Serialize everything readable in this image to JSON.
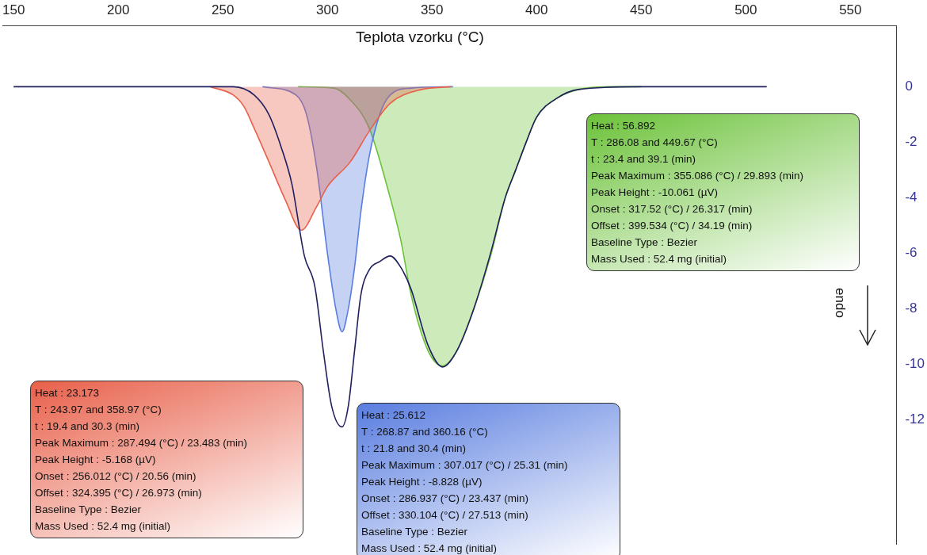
{
  "chart_data": {
    "type": "line",
    "xlabel": "Teplota vzorku (°C)",
    "xlim": [
      145,
      572
    ],
    "xticks": [
      150,
      200,
      250,
      300,
      350,
      400,
      450,
      500,
      550
    ],
    "ylim": [
      -16.5,
      2.2
    ],
    "yticks": [
      0,
      -2,
      -4,
      -6,
      -8,
      -10,
      -12
    ],
    "grid": false,
    "legend": false,
    "marker": "none",
    "line_style": "solid",
    "series": [
      {
        "color": "#202060",
        "x": [
          150,
          240,
          255,
          265,
          272,
          278,
          283,
          289,
          294,
          298,
          302,
          307,
          310,
          313,
          316,
          320,
          325,
          330,
          335,
          340,
          348,
          355,
          362,
          370,
          378,
          385,
          390,
          395,
          400,
          410,
          420,
          450,
          510
        ],
        "values": [
          0,
          0,
          0,
          -0.3,
          -1.0,
          -2.2,
          -3.5,
          -6.1,
          -7.2,
          -9.5,
          -11.5,
          -12.26,
          -11.5,
          -9.5,
          -7.5,
          -6.6,
          -6.3,
          -6.1,
          -6.5,
          -7.3,
          -9.3,
          -10.1,
          -9.5,
          -8.0,
          -6.0,
          -4.0,
          -3.0,
          -2.0,
          -1.1,
          -0.4,
          -0.1,
          0,
          0
        ]
      },
      {
        "type": "area",
        "color": "#e8604a",
        "x": [
          244,
          255,
          260,
          265,
          272,
          280,
          287.5,
          295,
          300,
          311,
          320,
          330,
          345,
          359
        ],
        "values": [
          0,
          -0.3,
          -0.7,
          -1.5,
          -2.7,
          -4.1,
          -5.17,
          -4.3,
          -3.6,
          -2.7,
          -1.6,
          -0.6,
          -0.1,
          0
        ]
      },
      {
        "type": "area",
        "color": "#5a7ee0",
        "x": [
          269,
          285,
          290,
          295,
          300,
          304,
          307,
          310,
          313,
          316,
          320,
          325,
          330,
          340,
          360
        ],
        "values": [
          0,
          -0.3,
          -1,
          -3,
          -6,
          -8,
          -8.83,
          -8,
          -6.5,
          -4.5,
          -2.5,
          -1,
          -0.3,
          -0.05,
          0
        ]
      },
      {
        "type": "area",
        "color": "#6cc23a",
        "x": [
          286,
          303,
          310,
          320,
          330,
          335,
          340,
          348,
          355,
          362,
          370,
          378,
          385,
          390,
          395,
          400,
          410,
          420,
          435,
          450
        ],
        "values": [
          0,
          -0.05,
          -0.4,
          -1.5,
          -4,
          -5.5,
          -7.5,
          -9.5,
          -10.06,
          -9.5,
          -8,
          -6.1,
          -4,
          -3,
          -2,
          -1.1,
          -0.4,
          -0.1,
          0,
          0
        ]
      }
    ],
    "annotations": [
      "Heat :  23.173\nT : 243.97 and 358.97 (°C)\nt : 19.4 and 30.3 (min)\nPeak Maximum :  287.494 (°C) / 23.483 (min)\nPeak Height :  -5.168 (µV)\nOnset :  256.012 (°C) / 20.56 (min)\nOffset :  324.395 (°C) / 26.973 (min)\nBaseline Type :  Bezier\nMass Used :  52.4 mg (initial)",
      "Heat :  25.612\nT : 268.87 and 360.16 (°C)\nt : 21.8 and 30.4 (min)\nPeak Maximum :  307.017 (°C) / 25.31 (min)\nPeak Height :  -8.828 (µV)\nOnset :  286.937 (°C) / 23.437 (min)\nOffset :  330.104 (°C) / 27.513 (min)\nBaseline Type :  Bezier\nMass Used :  52.4 mg (initial)",
      "Heat :  56.892\nT : 286.08 and 449.67 (°C)\nt : 23.4 and 39.1 (min)\nPeak Maximum :  355.086 (°C) / 29.893 (min)\nPeak Height :  -10.061 (µV)\nOnset :  317.52 (°C) / 26.317 (min)\nOffset :  399.534 (°C) / 34.19 (min)\nBaseline Type :  Bezier\nMass Used :  52.4 mg (initial)",
      "endo"
    ]
  }
}
